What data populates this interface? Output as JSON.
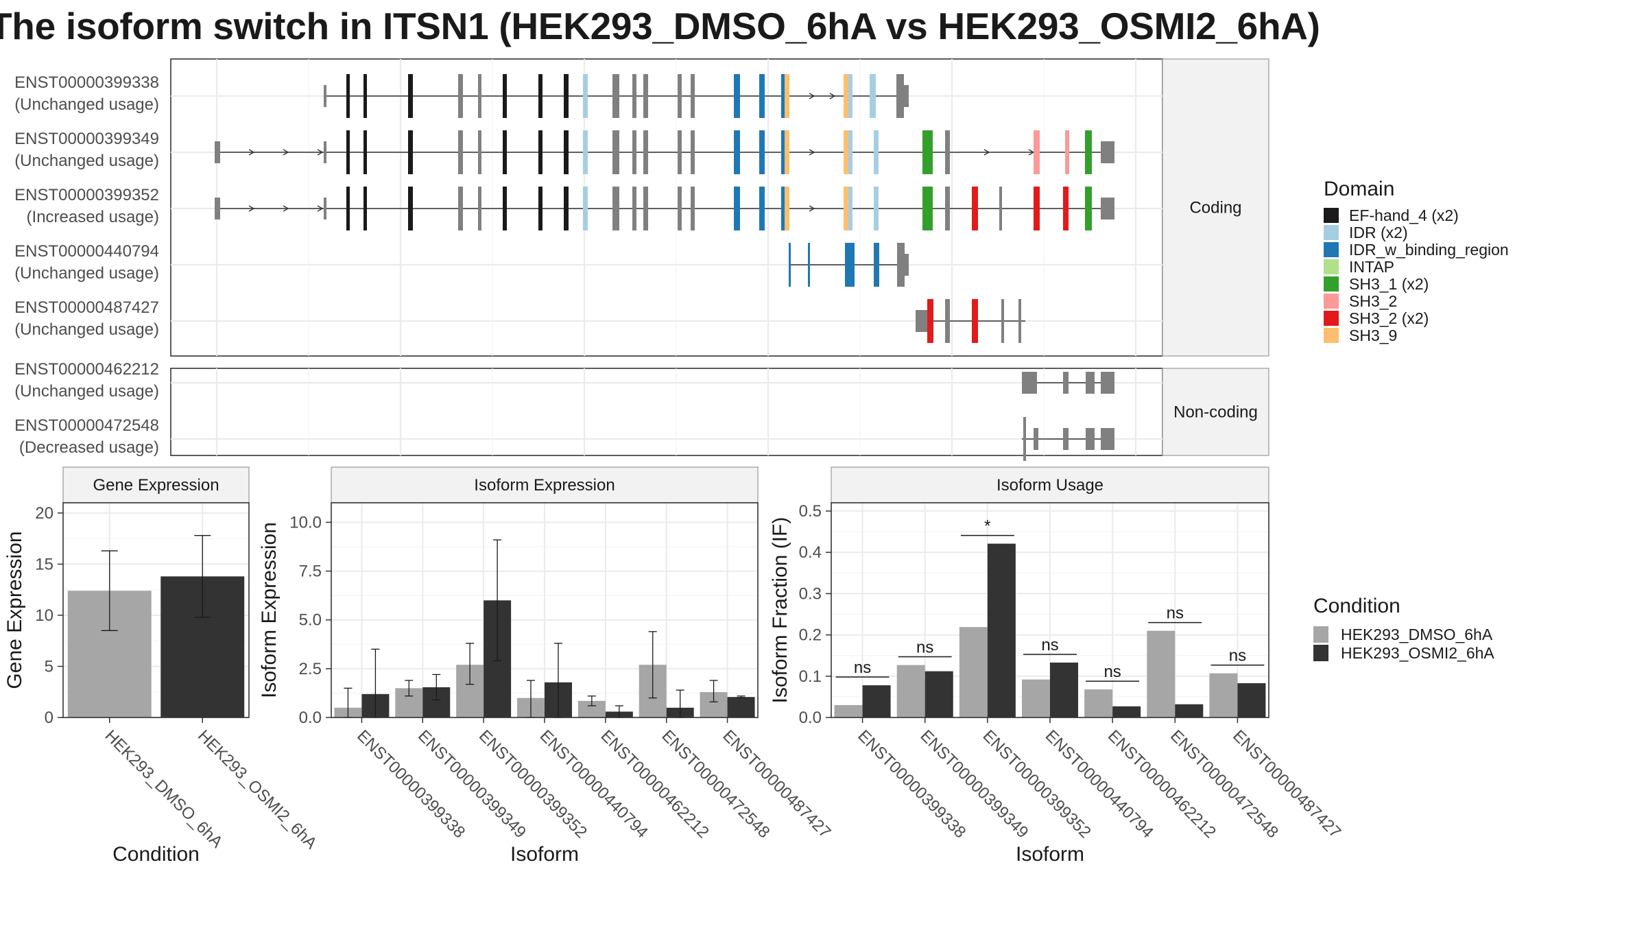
{
  "title": "The isoform switch in ITSN1 (HEK293_DMSO_6hA vs HEK293_OSMI2_6hA)",
  "structure_panel": {
    "facets": [
      "Coding",
      "Non-coding"
    ],
    "isoforms": [
      {
        "id": "ENST00000399338",
        "usage": "(Unchanged usage)",
        "facet": "Coding"
      },
      {
        "id": "ENST00000399349",
        "usage": "(Unchanged usage)",
        "facet": "Coding"
      },
      {
        "id": "ENST00000399352",
        "usage": "(Increased usage)",
        "facet": "Coding"
      },
      {
        "id": "ENST00000440794",
        "usage": "(Unchanged usage)",
        "facet": "Coding"
      },
      {
        "id": "ENST00000487427",
        "usage": "(Unchanged usage)",
        "facet": "Coding"
      },
      {
        "id": "ENST00000462212",
        "usage": "(Unchanged usage)",
        "facet": "Non-coding"
      },
      {
        "id": "ENST00000472548",
        "usage": "(Decreased usage)",
        "facet": "Non-coding"
      }
    ],
    "domain_legend_title": "Domain",
    "domains": [
      {
        "name": "EF-hand_4 (x2)",
        "color": "#1a1a1a"
      },
      {
        "name": "IDR (x2)",
        "color": "#a6cee3"
      },
      {
        "name": "IDR_w_binding_region",
        "color": "#1f78b4"
      },
      {
        "name": "INTAP",
        "color": "#b2df8a"
      },
      {
        "name": "SH3_1 (x2)",
        "color": "#33a02c"
      },
      {
        "name": "SH3_2",
        "color": "#fb9a99"
      },
      {
        "name": "SH3_2 (x2)",
        "color": "#e31a1c"
      },
      {
        "name": "SH3_9",
        "color": "#fdbf6f"
      }
    ]
  },
  "chart_data": [
    {
      "type": "bar",
      "facet": "Gene Expression",
      "xlabel": "Condition",
      "ylabel": "Gene Expression",
      "ylim": [
        0,
        21
      ],
      "yticks": [
        0,
        5,
        10,
        15,
        20
      ],
      "categories": [
        "HEK293_DMSO_6hA",
        "HEK293_OSMI2_6hA"
      ],
      "values": [
        12.4,
        13.8
      ],
      "error": [
        [
          8.5,
          16.3
        ],
        [
          9.8,
          17.8
        ]
      ]
    },
    {
      "type": "bar",
      "facet": "Isoform Expression",
      "xlabel": "Isoform",
      "ylabel": "Isoform Expression",
      "ylim": [
        0,
        11
      ],
      "yticks": [
        0.0,
        2.5,
        5.0,
        7.5,
        10.0
      ],
      "categories": [
        "ENST00000399338",
        "ENST00000399349",
        "ENST00000399352",
        "ENST00000440794",
        "ENST00000462212",
        "ENST00000472548",
        "ENST00000487427"
      ],
      "series": [
        {
          "name": "HEK293_DMSO_6hA",
          "values": [
            0.5,
            1.5,
            2.7,
            1.0,
            0.85,
            2.7,
            1.3
          ],
          "error": [
            [
              0.0,
              1.5
            ],
            [
              1.1,
              1.9
            ],
            [
              1.7,
              3.8
            ],
            [
              0.0,
              1.9
            ],
            [
              0.6,
              1.1
            ],
            [
              1.0,
              4.4
            ],
            [
              0.8,
              1.9
            ]
          ]
        },
        {
          "name": "HEK293_OSMI2_6hA",
          "values": [
            1.2,
            1.55,
            6.0,
            1.8,
            0.3,
            0.5,
            1.05
          ],
          "error": [
            [
              0.0,
              3.5
            ],
            [
              0.9,
              2.2
            ],
            [
              2.9,
              9.1
            ],
            [
              0.0,
              3.8
            ],
            [
              0.0,
              0.6
            ],
            [
              0.0,
              1.4
            ],
            [
              1.0,
              1.1
            ]
          ]
        }
      ]
    },
    {
      "type": "bar",
      "facet": "Isoform Usage",
      "xlabel": "Isoform",
      "ylabel": "Isoform Fraction (IF)",
      "ylim": [
        0,
        0.52
      ],
      "yticks": [
        0.0,
        0.1,
        0.2,
        0.3,
        0.4,
        0.5
      ],
      "categories": [
        "ENST00000399338",
        "ENST00000399349",
        "ENST00000399352",
        "ENST00000440794",
        "ENST00000462212",
        "ENST00000472548",
        "ENST00000487427"
      ],
      "series": [
        {
          "name": "HEK293_DMSO_6hA",
          "values": [
            0.03,
            0.127,
            0.219,
            0.092,
            0.068,
            0.21,
            0.107
          ]
        },
        {
          "name": "HEK293_OSMI2_6hA",
          "values": [
            0.078,
            0.112,
            0.421,
            0.133,
            0.027,
            0.032,
            0.083
          ]
        }
      ],
      "significance": [
        "ns",
        "ns",
        "*",
        "ns",
        "ns",
        "ns",
        "ns"
      ]
    }
  ],
  "condition_legend": {
    "title": "Condition",
    "items": [
      {
        "name": "HEK293_DMSO_6hA",
        "color": "#a6a6a6"
      },
      {
        "name": "HEK293_OSMI2_6hA",
        "color": "#333333"
      }
    ]
  }
}
